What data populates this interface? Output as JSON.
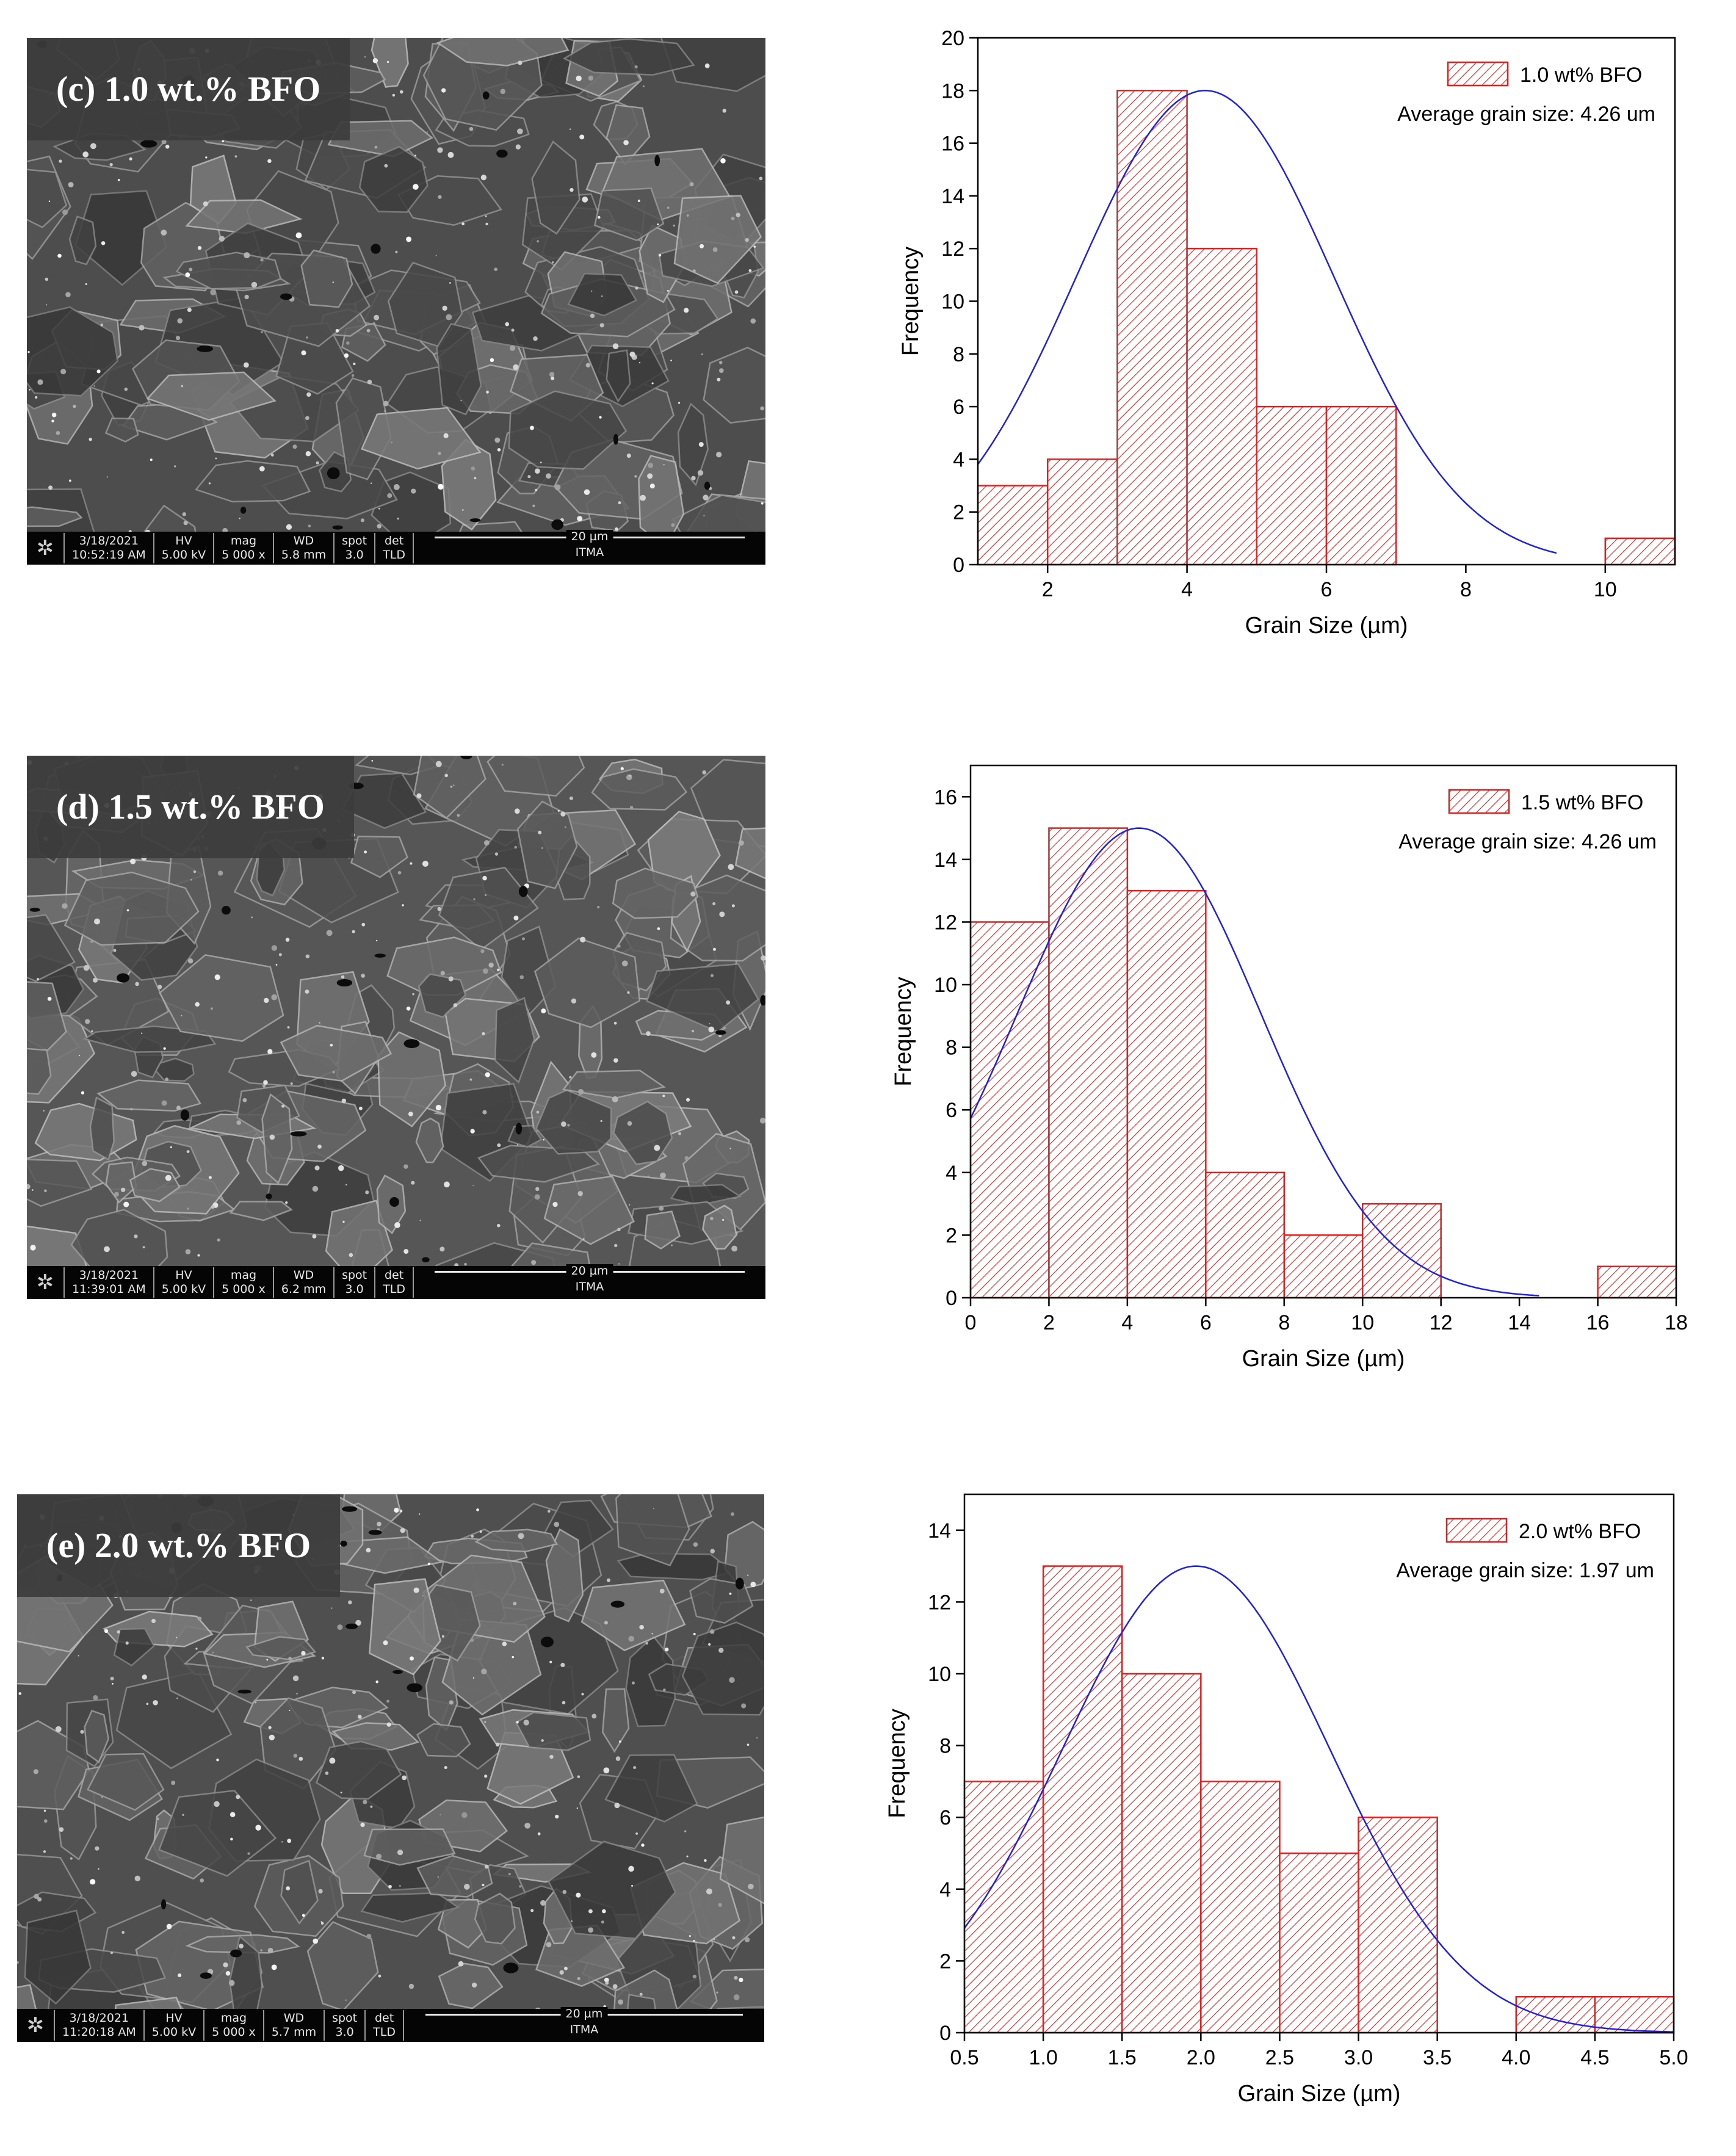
{
  "panels": [
    {
      "sem": {
        "label": "(c) 1.0 wt.% BFO",
        "date": "3/18/2021",
        "time": "10:52:19 AM",
        "hv_label": "HV",
        "hv": "5.00 kV",
        "mag_label": "mag",
        "mag": "5 000 x",
        "wd_label": "WD",
        "wd": "5.8 mm",
        "spot_label": "spot",
        "spot": "3.0",
        "det_label": "det",
        "det": "TLD",
        "scale": "20 µm",
        "institution": "ITMA"
      },
      "chart_data": {
        "type": "bar",
        "xlabel": "Grain Size (µm)",
        "ylabel": "Frequency",
        "xlim": [
          1,
          11
        ],
        "ylim": [
          0,
          20
        ],
        "xticks": [
          2,
          4,
          6,
          8,
          10
        ],
        "yticks": [
          0,
          2,
          4,
          6,
          8,
          10,
          12,
          14,
          16,
          18,
          20
        ],
        "bin_width": 1,
        "bin_starts": [
          1,
          2,
          3,
          4,
          5,
          6,
          10
        ],
        "values": [
          3,
          4,
          18,
          12,
          6,
          6,
          1
        ],
        "legend": "1.0 wt% BFO",
        "annotation": "Average grain size: 4.26 um",
        "fit": {
          "type": "gaussian",
          "mean": 4.26,
          "peak": 18,
          "sigma": 1.85,
          "x_range": [
            1,
            9.3
          ]
        }
      }
    },
    {
      "sem": {
        "label": "(d) 1.5 wt.% BFO",
        "date": "3/18/2021",
        "time": "11:39:01 AM",
        "hv_label": "HV",
        "hv": "5.00 kV",
        "mag_label": "mag",
        "mag": "5 000 x",
        "wd_label": "WD",
        "wd": "6.2 mm",
        "spot_label": "spot",
        "spot": "3.0",
        "det_label": "det",
        "det": "TLD",
        "scale": "20 µm",
        "institution": "ITMA"
      },
      "chart_data": {
        "type": "bar",
        "xlabel": "Grain Size (µm)",
        "ylabel": "Frequency",
        "xlim": [
          0,
          18
        ],
        "ylim": [
          0,
          17
        ],
        "xticks": [
          0,
          2,
          4,
          6,
          8,
          10,
          12,
          14,
          16,
          18
        ],
        "yticks": [
          0,
          2,
          4,
          6,
          8,
          10,
          12,
          14,
          16
        ],
        "bin_width": 2,
        "bin_starts": [
          0,
          2,
          4,
          6,
          8,
          10,
          16
        ],
        "values": [
          12,
          15,
          13,
          4,
          2,
          3,
          1
        ],
        "legend": "1.5 wt% BFO",
        "annotation": "Average grain size: 4.26 um",
        "fit": {
          "type": "gaussian",
          "mean": 4.3,
          "peak": 15,
          "sigma": 3.1,
          "x_range": [
            0,
            14.5
          ]
        }
      }
    },
    {
      "sem": {
        "label": "(e) 2.0 wt.% BFO",
        "date": "3/18/2021",
        "time": "11:20:18 AM",
        "hv_label": "HV",
        "hv": "5.00 kV",
        "mag_label": "mag",
        "mag": "5 000 x",
        "wd_label": "WD",
        "wd": "5.7 mm",
        "spot_label": "spot",
        "spot": "3.0",
        "det_label": "det",
        "det": "TLD",
        "scale": "20 µm",
        "institution": "ITMA"
      },
      "chart_data": {
        "type": "bar",
        "xlabel": "Grain Size (µm)",
        "ylabel": "Frequency",
        "xlim": [
          0.5,
          5.0
        ],
        "ylim": [
          0,
          15
        ],
        "xticks": [
          0.5,
          1.0,
          1.5,
          2.0,
          2.5,
          3.0,
          3.5,
          4.0,
          4.5,
          5.0
        ],
        "yticks": [
          0,
          2,
          4,
          6,
          8,
          10,
          12,
          14
        ],
        "bin_width": 0.5,
        "bin_starts": [
          0.5,
          1.0,
          1.5,
          2.0,
          2.5,
          3.0,
          4.0,
          4.5
        ],
        "values": [
          7,
          13,
          10,
          7,
          5,
          6,
          1,
          1
        ],
        "legend": "2.0 wt% BFO",
        "annotation": "Average grain size: 1.97 um",
        "fit": {
          "type": "gaussian",
          "mean": 1.97,
          "peak": 13,
          "sigma": 0.85,
          "x_range": [
            0.5,
            5.0
          ]
        }
      }
    }
  ]
}
